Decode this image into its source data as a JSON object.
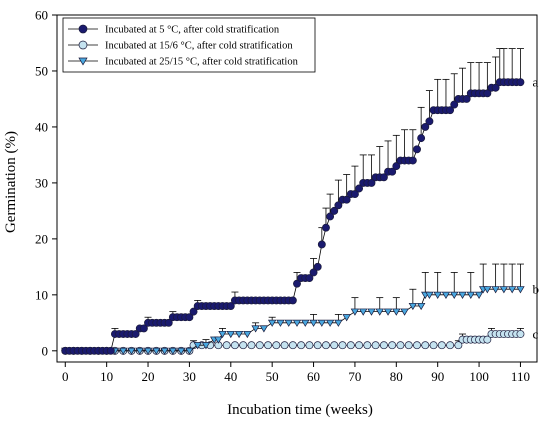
{
  "chart_data": {
    "type": "line",
    "xlabel": "Incubation time (weeks)",
    "ylabel": "Germination (%)",
    "xlim": [
      -2,
      114
    ],
    "ylim": [
      -2,
      60
    ],
    "x_ticks": [
      0,
      10,
      20,
      30,
      40,
      50,
      60,
      70,
      80,
      90,
      100,
      110
    ],
    "y_ticks": [
      0,
      10,
      20,
      30,
      40,
      50,
      60
    ],
    "legend_position": "top-left",
    "series": [
      {
        "name": "Incubated at 5 °C, after cold stratification",
        "marker": "circle",
        "color": "#1a1a6e",
        "end_label": "a",
        "points": [
          [
            0,
            0
          ],
          [
            1,
            0
          ],
          [
            2,
            0
          ],
          [
            3,
            0
          ],
          [
            4,
            0
          ],
          [
            5,
            0
          ],
          [
            6,
            0
          ],
          [
            7,
            0
          ],
          [
            8,
            0
          ],
          [
            9,
            0
          ],
          [
            10,
            0
          ],
          [
            11,
            0
          ],
          [
            12,
            3
          ],
          [
            13,
            3
          ],
          [
            14,
            3
          ],
          [
            15,
            3
          ],
          [
            16,
            3
          ],
          [
            17,
            3
          ],
          [
            18,
            4
          ],
          [
            19,
            4
          ],
          [
            20,
            5
          ],
          [
            21,
            5
          ],
          [
            22,
            5
          ],
          [
            23,
            5
          ],
          [
            24,
            5
          ],
          [
            25,
            5
          ],
          [
            26,
            6
          ],
          [
            27,
            6
          ],
          [
            28,
            6
          ],
          [
            29,
            6
          ],
          [
            30,
            6
          ],
          [
            31,
            7
          ],
          [
            32,
            8
          ],
          [
            33,
            8
          ],
          [
            34,
            8
          ],
          [
            35,
            8
          ],
          [
            36,
            8
          ],
          [
            37,
            8
          ],
          [
            38,
            8
          ],
          [
            39,
            8
          ],
          [
            40,
            8
          ],
          [
            41,
            9
          ],
          [
            42,
            9
          ],
          [
            43,
            9
          ],
          [
            44,
            9
          ],
          [
            45,
            9
          ],
          [
            46,
            9
          ],
          [
            47,
            9
          ],
          [
            48,
            9
          ],
          [
            49,
            9
          ],
          [
            50,
            9
          ],
          [
            51,
            9
          ],
          [
            52,
            9
          ],
          [
            53,
            9
          ],
          [
            54,
            9
          ],
          [
            55,
            9
          ],
          [
            56,
            12
          ],
          [
            57,
            13
          ],
          [
            58,
            13
          ],
          [
            59,
            13
          ],
          [
            60,
            14
          ],
          [
            61,
            15
          ],
          [
            62,
            19
          ],
          [
            63,
            22
          ],
          [
            64,
            24
          ],
          [
            65,
            25
          ],
          [
            66,
            26
          ],
          [
            67,
            27
          ],
          [
            68,
            27
          ],
          [
            69,
            28
          ],
          [
            70,
            28
          ],
          [
            71,
            29
          ],
          [
            72,
            30
          ],
          [
            73,
            30
          ],
          [
            74,
            30
          ],
          [
            75,
            31
          ],
          [
            76,
            31
          ],
          [
            77,
            31
          ],
          [
            78,
            32
          ],
          [
            79,
            32
          ],
          [
            80,
            33
          ],
          [
            81,
            34
          ],
          [
            82,
            34
          ],
          [
            83,
            34
          ],
          [
            84,
            34
          ],
          [
            85,
            36
          ],
          [
            86,
            38
          ],
          [
            87,
            40
          ],
          [
            88,
            41
          ],
          [
            89,
            43
          ],
          [
            90,
            43
          ],
          [
            91,
            43
          ],
          [
            92,
            43
          ],
          [
            93,
            43
          ],
          [
            94,
            44
          ],
          [
            95,
            45
          ],
          [
            96,
            45
          ],
          [
            97,
            45
          ],
          [
            98,
            46
          ],
          [
            99,
            46
          ],
          [
            100,
            46
          ],
          [
            101,
            46
          ],
          [
            102,
            46
          ],
          [
            103,
            47
          ],
          [
            104,
            47
          ],
          [
            105,
            48
          ],
          [
            106,
            48
          ],
          [
            107,
            48
          ],
          [
            108,
            48
          ],
          [
            109,
            48
          ],
          [
            110,
            48
          ]
        ],
        "err": [
          [
            12,
            1
          ],
          [
            20,
            1
          ],
          [
            26,
            1
          ],
          [
            32,
            1
          ],
          [
            41,
            1.5
          ],
          [
            56,
            2
          ],
          [
            60,
            2.5
          ],
          [
            62,
            3
          ],
          [
            63,
            3.5
          ],
          [
            64,
            4
          ],
          [
            66,
            4.5
          ],
          [
            68,
            4.5
          ],
          [
            70,
            5
          ],
          [
            72,
            5
          ],
          [
            74,
            5
          ],
          [
            76,
            5.5
          ],
          [
            78,
            5.5
          ],
          [
            80,
            5.5
          ],
          [
            82,
            5.5
          ],
          [
            84,
            5.5
          ],
          [
            86,
            5.5
          ],
          [
            88,
            5.5
          ],
          [
            90,
            5.5
          ],
          [
            92,
            5.5
          ],
          [
            94,
            5.5
          ],
          [
            96,
            5.5
          ],
          [
            98,
            5.5
          ],
          [
            100,
            5.5
          ],
          [
            102,
            5.5
          ],
          [
            104,
            5.5
          ],
          [
            105,
            6
          ],
          [
            106,
            6
          ],
          [
            108,
            6
          ],
          [
            110,
            6
          ]
        ]
      },
      {
        "name": "Incubated at 15/6 °C, after cold stratification",
        "marker": "circle",
        "color": "#c5e3f0",
        "end_label": "c",
        "points": [
          [
            0,
            0
          ],
          [
            2,
            0
          ],
          [
            4,
            0
          ],
          [
            6,
            0
          ],
          [
            8,
            0
          ],
          [
            10,
            0
          ],
          [
            12,
            0
          ],
          [
            14,
            0
          ],
          [
            16,
            0
          ],
          [
            18,
            0
          ],
          [
            20,
            0
          ],
          [
            22,
            0
          ],
          [
            24,
            0
          ],
          [
            26,
            0
          ],
          [
            28,
            0
          ],
          [
            30,
            0
          ],
          [
            31,
            1
          ],
          [
            33,
            1
          ],
          [
            35,
            1
          ],
          [
            37,
            1
          ],
          [
            39,
            1
          ],
          [
            41,
            1
          ],
          [
            43,
            1
          ],
          [
            45,
            1
          ],
          [
            47,
            1
          ],
          [
            49,
            1
          ],
          [
            51,
            1
          ],
          [
            53,
            1
          ],
          [
            55,
            1
          ],
          [
            57,
            1
          ],
          [
            59,
            1
          ],
          [
            61,
            1
          ],
          [
            63,
            1
          ],
          [
            65,
            1
          ],
          [
            67,
            1
          ],
          [
            69,
            1
          ],
          [
            71,
            1
          ],
          [
            73,
            1
          ],
          [
            75,
            1
          ],
          [
            77,
            1
          ],
          [
            79,
            1
          ],
          [
            81,
            1
          ],
          [
            83,
            1
          ],
          [
            85,
            1
          ],
          [
            87,
            1
          ],
          [
            89,
            1
          ],
          [
            91,
            1
          ],
          [
            93,
            1
          ],
          [
            95,
            1
          ],
          [
            96,
            2
          ],
          [
            97,
            2
          ],
          [
            98,
            2
          ],
          [
            99,
            2
          ],
          [
            100,
            2
          ],
          [
            101,
            2
          ],
          [
            102,
            2
          ],
          [
            103,
            3
          ],
          [
            104,
            3
          ],
          [
            105,
            3
          ],
          [
            106,
            3
          ],
          [
            107,
            3
          ],
          [
            108,
            3
          ],
          [
            109,
            3
          ],
          [
            110,
            3
          ]
        ],
        "err": [
          [
            31,
            0.8
          ],
          [
            60,
            0.8
          ],
          [
            95,
            0.8
          ],
          [
            96,
            1
          ],
          [
            103,
            1
          ],
          [
            110,
            1
          ]
        ]
      },
      {
        "name": "Incubated at 25/15 °C, after cold stratification",
        "marker": "triangle-down",
        "color": "#4aa8e0",
        "end_label": "b",
        "points": [
          [
            0,
            0
          ],
          [
            2,
            0
          ],
          [
            4,
            0
          ],
          [
            6,
            0
          ],
          [
            8,
            0
          ],
          [
            10,
            0
          ],
          [
            12,
            0
          ],
          [
            14,
            0
          ],
          [
            16,
            0
          ],
          [
            18,
            0
          ],
          [
            20,
            0
          ],
          [
            22,
            0
          ],
          [
            24,
            0
          ],
          [
            26,
            0
          ],
          [
            28,
            0
          ],
          [
            30,
            0
          ],
          [
            32,
            1
          ],
          [
            34,
            1
          ],
          [
            36,
            2
          ],
          [
            37,
            2
          ],
          [
            38,
            3
          ],
          [
            40,
            3
          ],
          [
            42,
            3
          ],
          [
            44,
            3
          ],
          [
            46,
            4
          ],
          [
            48,
            4
          ],
          [
            50,
            5
          ],
          [
            52,
            5
          ],
          [
            54,
            5
          ],
          [
            56,
            5
          ],
          [
            58,
            5
          ],
          [
            60,
            5
          ],
          [
            62,
            5
          ],
          [
            64,
            5
          ],
          [
            66,
            5
          ],
          [
            68,
            6
          ],
          [
            70,
            7
          ],
          [
            72,
            7
          ],
          [
            74,
            7
          ],
          [
            76,
            7
          ],
          [
            78,
            7
          ],
          [
            80,
            7
          ],
          [
            82,
            7
          ],
          [
            84,
            8
          ],
          [
            86,
            8
          ],
          [
            87,
            10
          ],
          [
            88,
            10
          ],
          [
            90,
            10
          ],
          [
            92,
            10
          ],
          [
            94,
            10
          ],
          [
            96,
            10
          ],
          [
            98,
            10
          ],
          [
            100,
            10
          ],
          [
            101,
            11
          ],
          [
            102,
            11
          ],
          [
            104,
            11
          ],
          [
            106,
            11
          ],
          [
            108,
            11
          ],
          [
            110,
            11
          ]
        ],
        "err": [
          [
            34,
            1
          ],
          [
            38,
            1
          ],
          [
            46,
            1
          ],
          [
            50,
            1
          ],
          [
            60,
            1.5
          ],
          [
            66,
            1.5
          ],
          [
            70,
            2.5
          ],
          [
            76,
            2.5
          ],
          [
            80,
            2.5
          ],
          [
            84,
            3
          ],
          [
            87,
            4
          ],
          [
            90,
            4
          ],
          [
            94,
            4
          ],
          [
            98,
            4
          ],
          [
            101,
            4.5
          ],
          [
            104,
            4.5
          ],
          [
            106,
            4.5
          ],
          [
            108,
            4.5
          ],
          [
            110,
            4.5
          ]
        ]
      }
    ],
    "legend": [
      "Incubated at 5 °C, after cold stratification",
      "Incubated at 15/6 °C, after cold stratification",
      "Incubated at 25/15 °C, after cold stratification"
    ],
    "annotations": [
      "a",
      "b",
      "c"
    ]
  }
}
